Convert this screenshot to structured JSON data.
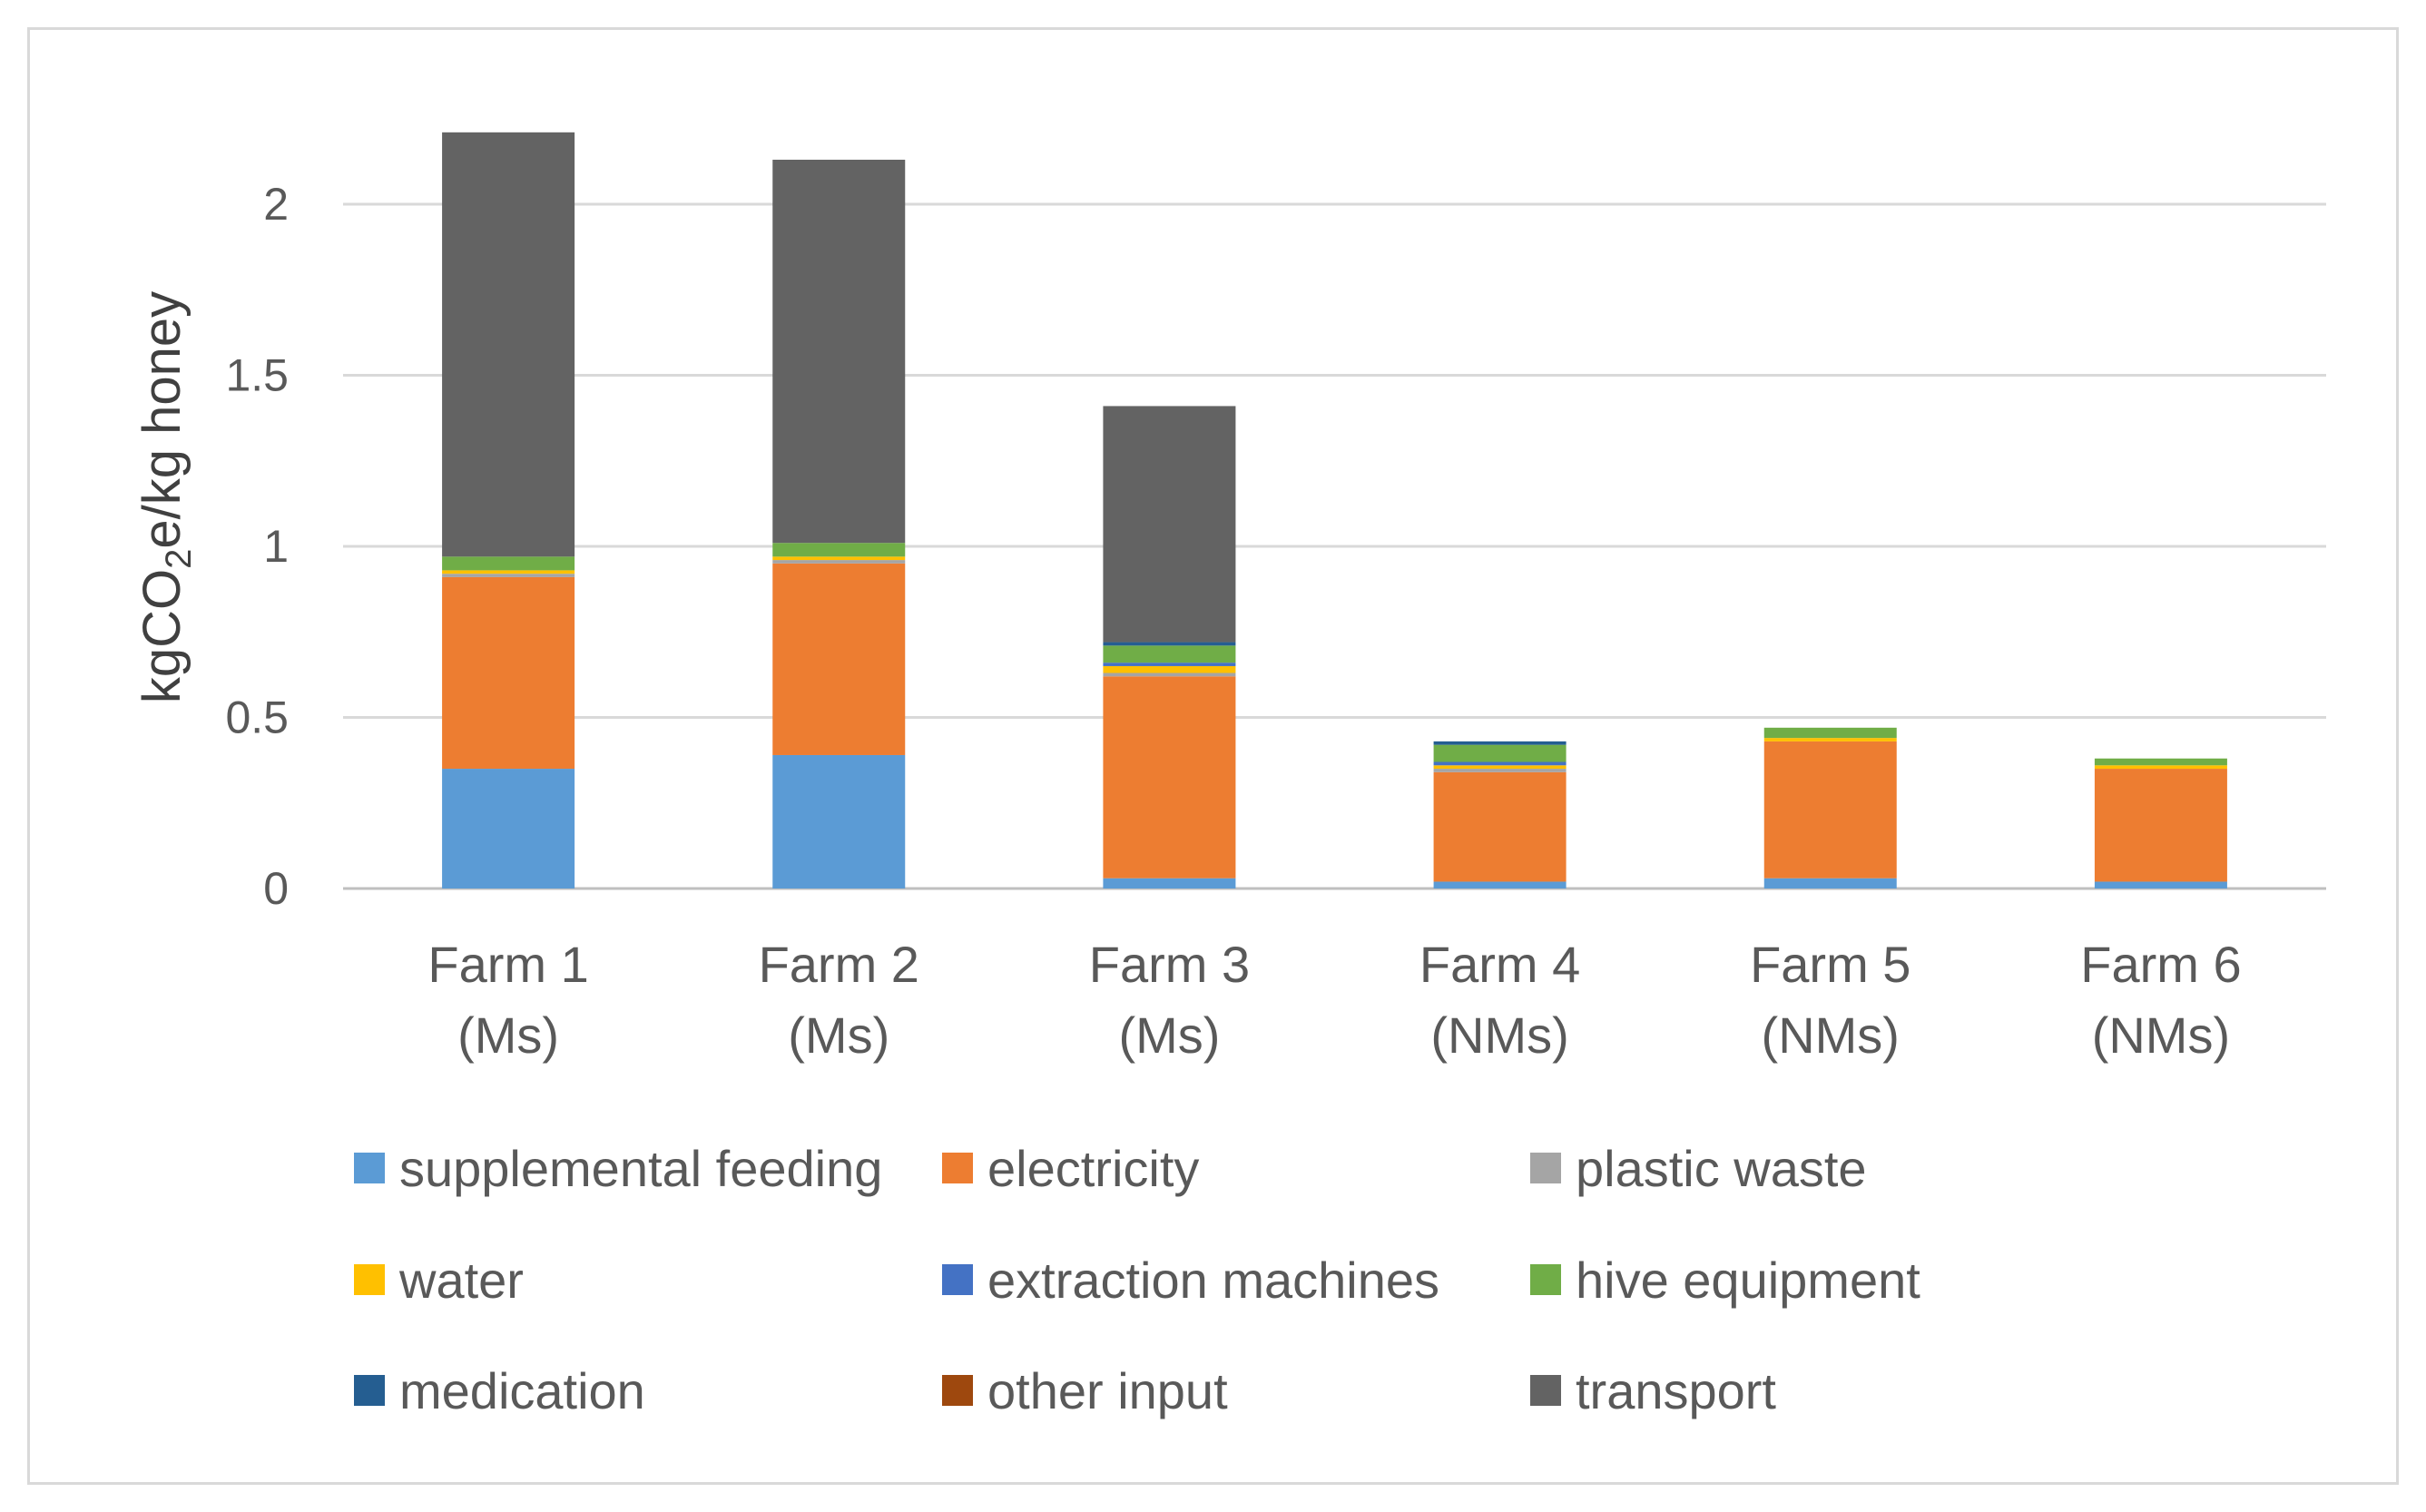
{
  "chart_data": {
    "type": "bar",
    "stacked": true,
    "title": "",
    "xlabel": "",
    "ylabel_parts": [
      "kgCO",
      "2",
      "e/kg honey"
    ],
    "ylim": [
      0,
      2.2
    ],
    "yticks": [
      0,
      0.5,
      1,
      1.5,
      2
    ],
    "ytick_labels": [
      "0",
      "0.5",
      "1",
      "1.5",
      "2"
    ],
    "categories": [
      [
        "Farm 1",
        "(Ms)"
      ],
      [
        "Farm 2",
        "(Ms)"
      ],
      [
        "Farm 3",
        "(Ms)"
      ],
      [
        "Farm 4",
        "(NMs)"
      ],
      [
        "Farm 5",
        "(NMs)"
      ],
      [
        "Farm 6",
        "(NMs)"
      ]
    ],
    "grid": true,
    "legend_position": "bottom",
    "series": [
      {
        "name": "supplemental feeding",
        "color": "#5b9bd5",
        "values": [
          0.35,
          0.39,
          0.03,
          0.02,
          0.03,
          0.02
        ]
      },
      {
        "name": "electricity",
        "color": "#ed7d31",
        "values": [
          0.56,
          0.56,
          0.59,
          0.32,
          0.4,
          0.33
        ]
      },
      {
        "name": "plastic waste",
        "color": "#a5a5a5",
        "values": [
          0.01,
          0.01,
          0.01,
          0.01,
          0.0,
          0.0
        ]
      },
      {
        "name": "water",
        "color": "#ffc000",
        "values": [
          0.01,
          0.01,
          0.02,
          0.01,
          0.01,
          0.01
        ]
      },
      {
        "name": "extraction machines",
        "color": "#4472c4",
        "values": [
          0.0,
          0.0,
          0.01,
          0.01,
          0.0,
          0.0
        ]
      },
      {
        "name": "hive equipment",
        "color": "#70ad47",
        "values": [
          0.04,
          0.04,
          0.05,
          0.05,
          0.03,
          0.02
        ]
      },
      {
        "name": "medication",
        "color": "#255e91",
        "values": [
          0.0,
          0.0,
          0.01,
          0.01,
          0.0,
          0.0
        ]
      },
      {
        "name": "other input",
        "color": "#9e480e",
        "values": [
          0.0,
          0.0,
          0.0,
          0.0,
          0.0,
          0.0
        ]
      },
      {
        "name": "transport",
        "color": "#636363",
        "values": [
          1.24,
          1.12,
          0.69,
          0.0,
          0.0,
          0.0
        ]
      }
    ]
  }
}
